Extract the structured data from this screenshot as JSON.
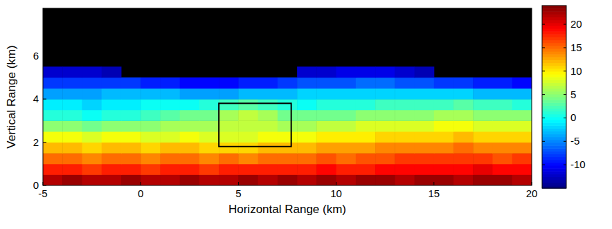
{
  "chart_data": {
    "type": "heatmap",
    "xlabel": "Horizontal Range (km)",
    "ylabel": "Vertical Range (km)",
    "x": [
      -5,
      -4,
      -3,
      -2,
      -1,
      0,
      1,
      2,
      3,
      4,
      5,
      6,
      7,
      8,
      9,
      10,
      11,
      12,
      13,
      14,
      15,
      16,
      17,
      18,
      19,
      20
    ],
    "y": [
      0,
      0.5,
      1,
      1.5,
      2,
      2.5,
      3,
      3.5,
      4,
      4.5,
      5,
      5.5,
      6
    ],
    "xlim": [
      -5,
      20
    ],
    "ylim": [
      0,
      8.2
    ],
    "xticks": [
      -5,
      0,
      5,
      10,
      15,
      20
    ],
    "yticks": [
      0,
      2,
      4,
      6
    ],
    "z": [
      [
        22,
        23,
        22,
        22,
        23,
        22,
        22,
        23,
        22,
        22,
        23,
        22,
        23,
        22,
        23,
        22,
        23,
        23,
        22,
        23,
        23,
        22,
        23,
        23,
        22
      ],
      [
        18,
        18,
        17,
        18,
        18,
        17,
        18,
        18,
        17,
        18,
        18,
        18,
        18,
        18,
        19,
        18,
        18,
        19,
        19,
        19,
        19,
        19,
        20,
        19,
        19
      ],
      [
        15,
        15,
        14,
        15,
        15,
        14,
        15,
        15,
        14,
        15,
        14,
        15,
        15,
        15,
        16,
        15,
        16,
        16,
        17,
        17,
        17,
        17,
        17,
        16,
        17
      ],
      [
        12,
        12,
        11,
        12,
        12,
        11,
        12,
        12,
        11,
        11,
        11,
        12,
        12,
        12,
        13,
        13,
        13,
        14,
        14,
        14,
        14,
        15,
        14,
        14,
        14
      ],
      [
        9,
        9,
        8,
        9,
        9,
        8,
        8,
        9,
        8,
        8,
        8,
        9,
        9,
        9,
        10,
        10,
        10,
        11,
        11,
        11,
        11,
        12,
        11,
        11,
        11
      ],
      [
        5,
        5,
        4,
        5,
        5,
        5,
        6,
        6,
        6,
        7,
        7,
        7,
        6,
        6,
        7,
        7,
        8,
        8,
        8,
        8,
        9,
        9,
        8,
        8,
        8
      ],
      [
        1,
        1,
        0,
        1,
        1,
        2,
        3,
        4,
        4,
        6,
        7,
        6,
        4,
        4,
        4,
        4,
        5,
        5,
        5,
        5,
        6,
        6,
        5,
        5,
        5
      ],
      [
        -1,
        -1,
        -2,
        -1,
        -1,
        0,
        0,
        0,
        1,
        2,
        3,
        2,
        1,
        0,
        1,
        1,
        1,
        2,
        2,
        2,
        2,
        3,
        2,
        2,
        1
      ],
      [
        -4,
        -4,
        -4,
        -3,
        -3,
        -3,
        -3,
        -4,
        -4,
        -4,
        -3,
        -3,
        -3,
        -2,
        -2,
        -2,
        -2,
        -2,
        -2,
        -2,
        -2,
        -2,
        -3,
        -3,
        -3
      ],
      [
        -8,
        -8,
        -8,
        -8,
        -8,
        -9,
        -9,
        -10,
        -10,
        -10,
        -9,
        -9,
        -8,
        -7,
        -7,
        -7,
        -6,
        -6,
        -7,
        -7,
        -8,
        -8,
        -9,
        -9,
        -10
      ],
      [
        -12,
        -12,
        -12,
        -13,
        null,
        null,
        null,
        null,
        null,
        null,
        null,
        null,
        null,
        -12,
        -12,
        -11,
        -11,
        -11,
        -12,
        -13,
        null,
        null,
        null,
        null,
        null
      ],
      [
        null,
        null,
        null,
        null,
        null,
        null,
        null,
        null,
        null,
        null,
        null,
        null,
        null,
        null,
        null,
        null,
        null,
        null,
        null,
        null,
        null,
        null,
        null,
        null,
        null
      ]
    ],
    "zlim": [
      -15,
      24
    ],
    "zticks": [
      -10,
      -5,
      0,
      5,
      10,
      15,
      20
    ],
    "region": {
      "x": [
        4,
        7.7
      ],
      "y": [
        1.8,
        3.8
      ]
    }
  }
}
